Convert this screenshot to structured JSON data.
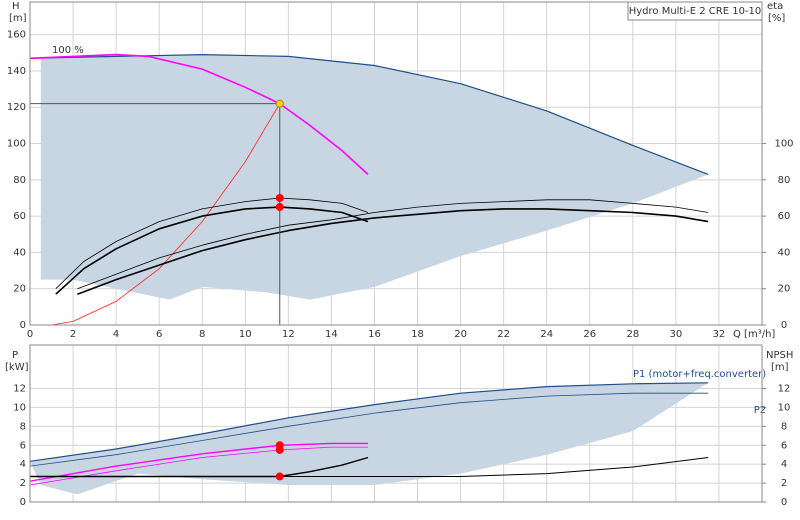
{
  "charts": [
    {
      "type": "line",
      "title": "Hydro Multi-E 2 CRE 10-10",
      "y_label": "H",
      "y_unit": "[m]",
      "y2_label": "eta",
      "y2_unit": "[%]",
      "x_label": "Q [m³/h]",
      "annotations": [
        "100 %"
      ],
      "xlim": [
        0,
        34
      ],
      "ylim": [
        0,
        178
      ],
      "y2lim": [
        0,
        178
      ],
      "xticks": [
        0,
        2,
        4,
        6,
        8,
        10,
        12,
        14,
        16,
        18,
        20,
        22,
        24,
        26,
        28,
        30,
        32
      ],
      "yticks": [
        0,
        20,
        40,
        60,
        80,
        100,
        120,
        140,
        160
      ],
      "y2ticks": [
        0,
        20,
        40,
        60,
        80,
        100
      ],
      "grid": true,
      "series": [
        {
          "kind": "area",
          "color": "#c8d5e2",
          "x": [
            0.5,
            4,
            8,
            12,
            16,
            20,
            24,
            28,
            31.5,
            28,
            24,
            20,
            16,
            13,
            11,
            8,
            6.5,
            4,
            2,
            0.5
          ],
          "values": [
            147,
            148,
            149,
            148,
            143,
            133,
            118,
            99,
            83,
            67,
            52,
            38,
            21,
            14,
            18,
            21,
            14,
            20,
            25,
            25
          ]
        },
        {
          "kind": "line",
          "color": "#1f4e8c",
          "width": 1.2,
          "x": [
            0,
            4,
            8,
            12,
            16,
            20,
            24,
            28,
            31.5
          ],
          "values": [
            147,
            148,
            149,
            148,
            143,
            133,
            118,
            99,
            83
          ]
        },
        {
          "kind": "line",
          "color": "#ff00ff",
          "width": 1.6,
          "x": [
            0,
            2,
            4,
            5.5,
            8,
            10,
            11.6,
            13,
            14.5,
            15.7
          ],
          "values": [
            147,
            148,
            149,
            148,
            141,
            131,
            122,
            110,
            96,
            83
          ]
        },
        {
          "kind": "line",
          "color": "#ff2020",
          "width": 0.8,
          "x": [
            1,
            2,
            4,
            6,
            8,
            10,
            11.6
          ],
          "values": [
            0,
            2,
            13,
            31,
            57,
            90,
            122
          ]
        },
        {
          "kind": "line",
          "axis": "y2",
          "color": "#000000",
          "width": 1.6,
          "x": [
            1.2,
            2.5,
            4,
            6,
            8,
            10,
            11.6,
            13,
            14.5,
            15.7
          ],
          "values": [
            17,
            31,
            42,
            53,
            60,
            64,
            65,
            64,
            62,
            57
          ]
        },
        {
          "kind": "line",
          "axis": "y2",
          "color": "#000000",
          "width": 0.8,
          "x": [
            1.2,
            2.5,
            4,
            6,
            8,
            10,
            11.6,
            13,
            14.5,
            15.7
          ],
          "values": [
            20,
            35,
            46,
            57,
            64,
            68,
            70,
            69,
            67,
            62
          ]
        },
        {
          "kind": "line",
          "axis": "y2",
          "color": "#000000",
          "width": 1.6,
          "x": [
            2.2,
            4,
            6,
            8,
            10,
            12,
            14,
            16,
            18,
            20,
            22,
            24,
            26,
            28,
            30,
            31.5
          ],
          "values": [
            17,
            25,
            33,
            41,
            47,
            52,
            56,
            59,
            61,
            63,
            64,
            64,
            63,
            62,
            60,
            57
          ]
        },
        {
          "kind": "line",
          "axis": "y2",
          "color": "#000000",
          "width": 0.8,
          "x": [
            2.2,
            4,
            6,
            8,
            10,
            12,
            14,
            16,
            18,
            20,
            22,
            24,
            26,
            28,
            30,
            31.5
          ],
          "values": [
            20,
            28,
            37,
            44,
            50,
            55,
            58,
            62,
            65,
            67,
            68,
            69,
            69,
            67,
            65,
            62
          ]
        },
        {
          "kind": "marker",
          "guide": true,
          "color": "#ffd700",
          "x": [
            11.6
          ],
          "values": [
            122
          ]
        },
        {
          "kind": "marker",
          "axis": "y2",
          "color": "#ff0000",
          "x": [
            11.6,
            11.6
          ],
          "values": [
            70,
            65
          ]
        }
      ]
    },
    {
      "type": "line",
      "y_label": "P",
      "y_unit": "[kW]",
      "y2_label": "NPSH",
      "y2_unit": "[m]",
      "xlim": [
        0,
        34
      ],
      "ylim": [
        0,
        16.6
      ],
      "y2lim": [
        0,
        16.6
      ],
      "yticks": [
        0,
        2,
        4,
        6,
        8,
        10,
        12
      ],
      "y2ticks": [
        0,
        2,
        4,
        6,
        8,
        10,
        12
      ],
      "grid": true,
      "series": [
        {
          "kind": "area",
          "color": "#c8d5e2",
          "x": [
            0,
            4,
            8,
            12,
            16,
            20,
            24,
            28,
            31.5,
            28,
            24,
            20,
            16,
            12,
            8,
            5,
            2.2,
            0.5
          ],
          "values": [
            4.3,
            5.6,
            7.2,
            8.9,
            10.3,
            11.5,
            12.2,
            12.5,
            12.6,
            7.5,
            5,
            3,
            1.8,
            1.8,
            2.4,
            3,
            0.8,
            1.8
          ]
        },
        {
          "kind": "line",
          "name": "P1 (motor+freq.converter)",
          "color": "#1f4e8c",
          "width": 1.2,
          "x": [
            0,
            4,
            8,
            12,
            16,
            20,
            24,
            28,
            31.5
          ],
          "values": [
            4.3,
            5.6,
            7.2,
            8.9,
            10.3,
            11.5,
            12.2,
            12.5,
            12.6
          ]
        },
        {
          "kind": "line",
          "name": "P2",
          "color": "#1f4e8c",
          "width": 0.8,
          "x": [
            0,
            4,
            8,
            12,
            16,
            20,
            24,
            28,
            31.5
          ],
          "values": [
            3.8,
            5,
            6.5,
            8,
            9.4,
            10.5,
            11.2,
            11.5,
            11.5
          ]
        },
        {
          "kind": "line",
          "color": "#ff00ff",
          "width": 1.4,
          "x": [
            0,
            4,
            8,
            11.6,
            14,
            15.7
          ],
          "values": [
            2.2,
            3.8,
            5.1,
            6,
            6.2,
            6.2
          ]
        },
        {
          "kind": "line",
          "color": "#ff00ff",
          "width": 0.8,
          "x": [
            0,
            4,
            8,
            11.6,
            14,
            15.7
          ],
          "values": [
            1.8,
            3.3,
            4.7,
            5.5,
            5.8,
            5.8
          ]
        },
        {
          "kind": "line",
          "axis": "y2",
          "color": "#000000",
          "width": 1.4,
          "x": [
            0,
            11.6,
            13,
            14.5,
            15.7
          ],
          "values": [
            2.7,
            2.7,
            3.2,
            3.9,
            4.7
          ]
        },
        {
          "kind": "line",
          "axis": "y2",
          "color": "#000000",
          "width": 1.0,
          "x": [
            0,
            20,
            24,
            28,
            31.5
          ],
          "values": [
            2.7,
            2.7,
            3,
            3.7,
            4.7
          ]
        },
        {
          "kind": "marker",
          "color": "#ff0000",
          "x": [
            11.6,
            11.6,
            11.6
          ],
          "values": [
            6,
            5.5,
            2.7
          ]
        }
      ]
    }
  ]
}
